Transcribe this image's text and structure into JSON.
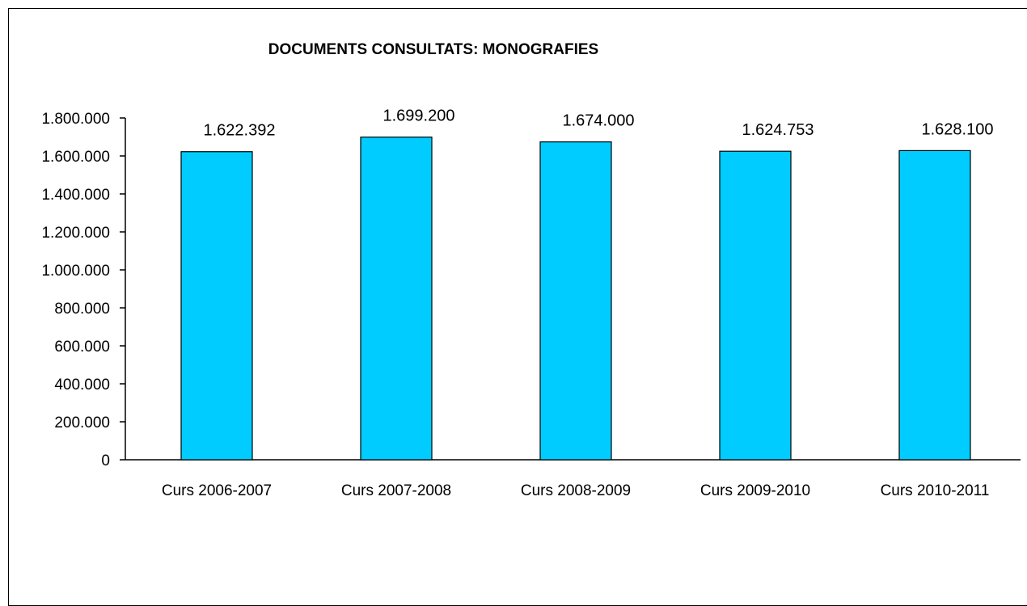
{
  "chart_data": {
    "type": "bar",
    "title": "DOCUMENTS CONSULTATS: MONOGRAFIES",
    "categories": [
      "Curs 2006-2007",
      "Curs 2007-2008",
      "Curs 2008-2009",
      "Curs 2009-2010",
      "Curs 2010-2011"
    ],
    "values": [
      1622392,
      1699200,
      1674000,
      1624753,
      1628100
    ],
    "data_labels": [
      "1.622.392",
      "1.699.200",
      "1.674.000",
      "1.624.753",
      "1.628.100"
    ],
    "ylim": [
      0,
      1800000
    ],
    "y_ticks": [
      0,
      200000,
      400000,
      600000,
      800000,
      1000000,
      1200000,
      1400000,
      1600000,
      1800000
    ],
    "y_tick_labels": [
      "0",
      "200.000",
      "400.000",
      "600.000",
      "800.000",
      "1.000.000",
      "1.200.000",
      "1.400.000",
      "1.600.000",
      "1.800.000"
    ],
    "grid": false,
    "legend": "none",
    "bar_color": "#00CCFF",
    "xlabel": "",
    "ylabel": ""
  }
}
